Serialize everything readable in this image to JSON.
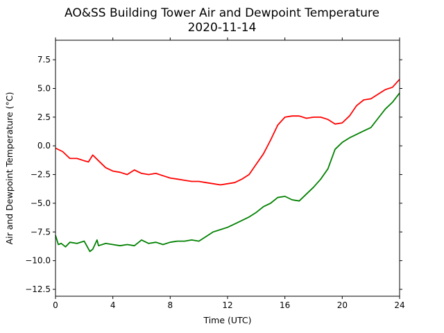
{
  "chart_data": {
    "type": "line",
    "title": "AO&SS Building Tower Air and Dewpoint Temperature",
    "subtitle": "2020-11-14",
    "xlabel": "Time (UTC)",
    "ylabel": "Air and Dewpoint Temperature (°C)",
    "xlim": [
      0,
      24
    ],
    "ylim": [
      -13.1,
      9.2
    ],
    "xticks": [
      0,
      4,
      8,
      12,
      16,
      20,
      24
    ],
    "yticks": [
      -12.5,
      -10.0,
      -7.5,
      -5.0,
      -2.5,
      0.0,
      2.5,
      5.0,
      7.5
    ],
    "ytick_labels": [
      "−12.5",
      "−10.0",
      "−7.5",
      "−5.0",
      "−2.5",
      "0.0",
      "2.5",
      "5.0",
      "7.5"
    ],
    "grid": false,
    "legend": "none",
    "series": [
      {
        "color": "#ff0000",
        "x": [
          0,
          0.5,
          1,
          1.5,
          2,
          2.3,
          2.6,
          3,
          3.5,
          4,
          4.5,
          5,
          5.5,
          6,
          6.5,
          7,
          7.5,
          8,
          8.5,
          9,
          9.5,
          10,
          10.5,
          11,
          11.5,
          12,
          12.5,
          13,
          13.5,
          14,
          14.5,
          15,
          15.5,
          16,
          16.5,
          17,
          17.5,
          18,
          18.5,
          19,
          19.5,
          20,
          20.5,
          21,
          21.5,
          22,
          22.5,
          23,
          23.5,
          24
        ],
        "y": [
          -0.2,
          -0.5,
          -1.1,
          -1.1,
          -1.3,
          -1.4,
          -0.8,
          -1.3,
          -1.9,
          -2.2,
          -2.3,
          -2.5,
          -2.1,
          -2.4,
          -2.5,
          -2.4,
          -2.6,
          -2.8,
          -2.9,
          -3.0,
          -3.1,
          -3.1,
          -3.2,
          -3.3,
          -3.4,
          -3.3,
          -3.2,
          -2.9,
          -2.5,
          -1.6,
          -0.7,
          0.5,
          1.8,
          2.5,
          2.6,
          2.6,
          2.4,
          2.5,
          2.5,
          2.3,
          1.9,
          2.0,
          2.6,
          3.5,
          4.0,
          4.1,
          4.5,
          4.9,
          5.1,
          5.8
        ]
      },
      {
        "color": "#008000",
        "x": [
          0,
          0.2,
          0.4,
          0.7,
          1,
          1.5,
          2,
          2.4,
          2.6,
          2.9,
          3,
          3.5,
          4,
          4.5,
          5,
          5.5,
          6,
          6.5,
          7,
          7.5,
          8,
          8.5,
          9,
          9.5,
          10,
          10.5,
          11,
          11.5,
          12,
          12.5,
          13,
          13.5,
          14,
          14.5,
          15,
          15.5,
          16,
          16.5,
          17,
          17.5,
          18,
          18.5,
          19,
          19.5,
          20,
          20.5,
          21,
          21.5,
          22,
          22.5,
          23,
          23.5,
          24
        ],
        "y": [
          -7.8,
          -8.6,
          -8.5,
          -8.8,
          -8.4,
          -8.5,
          -8.3,
          -9.2,
          -9.0,
          -8.2,
          -8.7,
          -8.5,
          -8.6,
          -8.7,
          -8.6,
          -8.7,
          -8.2,
          -8.5,
          -8.4,
          -8.6,
          -8.4,
          -8.3,
          -8.3,
          -8.2,
          -8.3,
          -7.9,
          -7.5,
          -7.3,
          -7.1,
          -6.8,
          -6.5,
          -6.2,
          -5.8,
          -5.3,
          -5.0,
          -4.5,
          -4.4,
          -4.7,
          -4.8,
          -4.2,
          -3.6,
          -2.9,
          -2.0,
          -0.3,
          0.3,
          0.7,
          1.0,
          1.3,
          1.6,
          2.4,
          3.2,
          3.8,
          4.6
        ]
      }
    ]
  }
}
